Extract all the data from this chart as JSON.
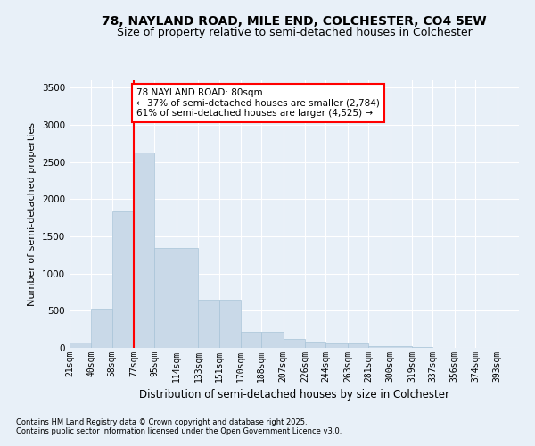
{
  "title": "78, NAYLAND ROAD, MILE END, COLCHESTER, CO4 5EW",
  "subtitle": "Size of property relative to semi-detached houses in Colchester",
  "xlabel": "Distribution of semi-detached houses by size in Colchester",
  "ylabel": "Number of semi-detached properties",
  "bar_color": "#c9d9e8",
  "bar_edge_color": "#a8c4d8",
  "vline_color": "red",
  "vline_x": 77,
  "annotation_text": "78 NAYLAND ROAD: 80sqm\n← 37% of semi-detached houses are smaller (2,784)\n61% of semi-detached houses are larger (4,525) →",
  "annotation_box_color": "white",
  "annotation_box_edge": "red",
  "footnote1": "Contains HM Land Registry data © Crown copyright and database right 2025.",
  "footnote2": "Contains public sector information licensed under the Open Government Licence v3.0.",
  "bins": [
    21,
    40,
    58,
    77,
    95,
    114,
    133,
    151,
    170,
    188,
    207,
    226,
    244,
    263,
    281,
    300,
    319,
    337,
    356,
    374,
    393
  ],
  "counts": [
    75,
    530,
    1840,
    2630,
    1350,
    1340,
    650,
    650,
    220,
    220,
    120,
    90,
    60,
    55,
    30,
    20,
    10,
    5,
    5,
    3,
    2
  ],
  "ylim": [
    0,
    3600
  ],
  "yticks": [
    0,
    500,
    1000,
    1500,
    2000,
    2500,
    3000,
    3500
  ],
  "background_color": "#e8f0f8",
  "grid_color": "white",
  "title_fontsize": 10,
  "subtitle_fontsize": 9,
  "tick_fontsize": 7,
  "label_fontsize": 8.5,
  "footnote_fontsize": 6,
  "ylabel_fontsize": 8
}
